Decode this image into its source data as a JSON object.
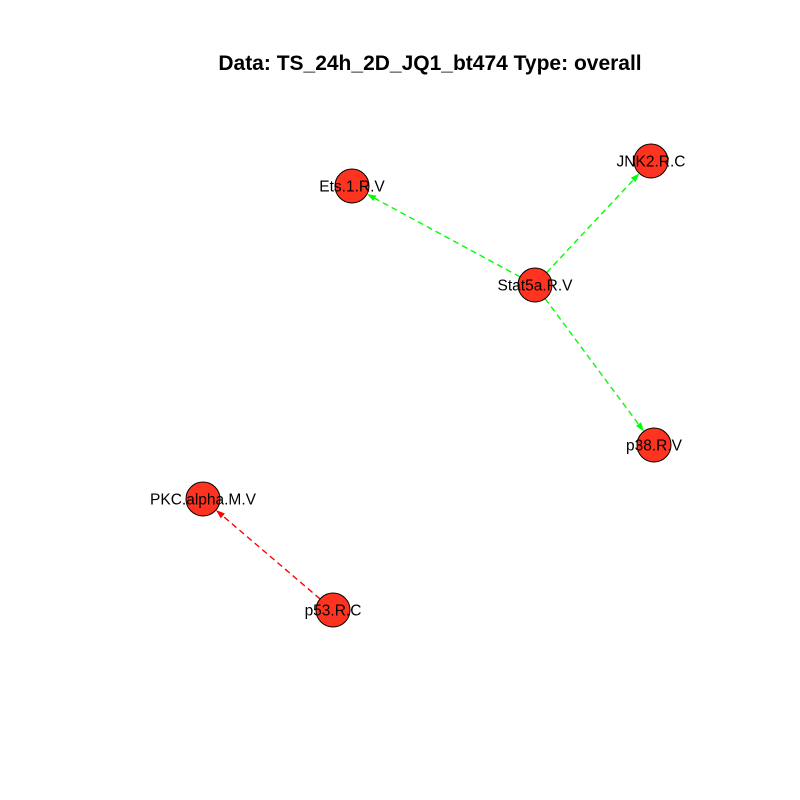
{
  "title": "Data: TS_24h_2D_JQ1_bt474 Type: overall",
  "colors": {
    "node_fill": "#ff3420",
    "node_stroke": "#000000",
    "edge_positive": "#00ff00",
    "edge_negative": "#ff0000"
  },
  "nodes": [
    {
      "id": "ets1",
      "label": "Ets.1.R.V"
    },
    {
      "id": "jnk2",
      "label": "JNK2.R.C"
    },
    {
      "id": "stat5a",
      "label": "Stat5a.R.V"
    },
    {
      "id": "p38",
      "label": "p38.R.V"
    },
    {
      "id": "pkc",
      "label": "PKC.alpha.M.V"
    },
    {
      "id": "p53",
      "label": "p53.R.C"
    }
  ],
  "edges": [
    {
      "source": "stat5a",
      "target": "ets1",
      "sign": "positive",
      "style": "dashed"
    },
    {
      "source": "stat5a",
      "target": "jnk2",
      "sign": "positive",
      "style": "dashed"
    },
    {
      "source": "stat5a",
      "target": "p38",
      "sign": "positive",
      "style": "dashed"
    },
    {
      "source": "p53",
      "target": "pkc",
      "sign": "negative",
      "style": "dashed"
    }
  ]
}
